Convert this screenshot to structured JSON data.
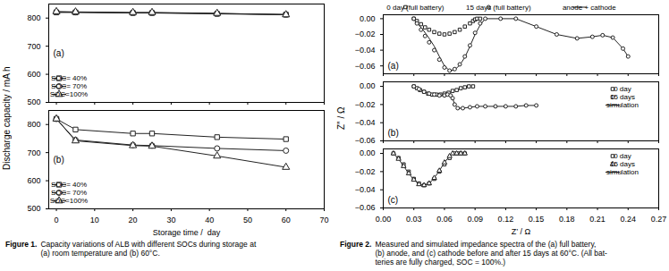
{
  "chart_data": [
    {
      "type": "line",
      "ylabel": "Discharge capacity / mA h",
      "annotations": [
        "(a)"
      ],
      "legend": "lower left",
      "grid": false,
      "tick_labels": "y",
      "xlim": [
        -2,
        70
      ],
      "xticks": [
        0,
        10,
        20,
        30,
        40,
        50,
        60,
        70
      ],
      "ylim": [
        500,
        850
      ],
      "yticks": [
        500,
        600,
        700,
        800
      ],
      "series": [
        {
          "name": "SOC= 40%",
          "marker": "square",
          "color": "#222222",
          "x": [
            0,
            5,
            20,
            25,
            42,
            60
          ],
          "values": [
            820,
            820,
            818,
            818,
            815,
            812
          ]
        },
        {
          "name": "SOC= 70%",
          "marker": "circle",
          "color": "#222222",
          "x": [
            0,
            5,
            20,
            25,
            42,
            60
          ],
          "values": [
            822,
            821,
            819,
            819,
            816,
            813
          ]
        },
        {
          "name": "SOC=100%",
          "marker": "triangle",
          "color": "#222222",
          "x": [
            0,
            5,
            20,
            25,
            42,
            60
          ],
          "values": [
            823,
            822,
            820,
            820,
            817,
            812
          ]
        }
      ]
    },
    {
      "type": "line",
      "xlabel": "Storage time /  day",
      "annotations": [
        "(b)"
      ],
      "legend": "lower left",
      "grid": false,
      "xlim": [
        -2,
        70
      ],
      "xticks": [
        0,
        10,
        20,
        30,
        40,
        50,
        60,
        70
      ],
      "ylim": [
        500,
        850
      ],
      "yticks": [
        500,
        600,
        700,
        800
      ],
      "series": [
        {
          "name": "SOC= 40%",
          "marker": "square",
          "color": "#222222",
          "x": [
            0,
            5,
            20,
            25,
            42,
            60
          ],
          "values": [
            820,
            782,
            768,
            768,
            755,
            748
          ]
        },
        {
          "name": "SOC= 70%",
          "marker": "circle",
          "color": "#222222",
          "x": [
            0,
            5,
            20,
            25,
            42,
            60
          ],
          "values": [
            820,
            745,
            727,
            725,
            715,
            707
          ]
        },
        {
          "name": "SOC=100%",
          "marker": "triangle",
          "color": "#222222",
          "x": [
            0,
            5,
            20,
            25,
            42,
            60
          ],
          "values": [
            820,
            742,
            725,
            723,
            688,
            648
          ]
        }
      ],
      "caption": [
        "Figure 1.",
        "Capacity variations of ALB with different SOCs during storage at\n(a) room temperature and (b) 60°C."
      ]
    },
    {
      "type": "scatter",
      "ylabel": "Z″ / Ω",
      "annotations": [
        "(a)"
      ],
      "legend": "upper center",
      "grid": false,
      "tick_labels": "y",
      "xlim": [
        0,
        0.27
      ],
      "xticks": [
        0,
        0.03,
        0.06,
        0.09,
        0.12,
        0.15,
        0.18,
        0.21,
        0.24,
        0.27
      ],
      "ylim": [
        -0.07,
        0.005
      ],
      "yticks": [
        -0.06,
        -0.04,
        -0.02,
        {
          "value": 0,
          "label": "0.00"
        }
      ],
      "series": [
        {
          "name": "0 day (full battery)",
          "type": "scatter",
          "marker": "square",
          "color": "#222222",
          "x": [
            0.03,
            0.033,
            0.037,
            0.041,
            0.045,
            0.05,
            0.055,
            0.06,
            0.065,
            0.07,
            0.075,
            0.08,
            0.085,
            0.088,
            0.09,
            0.092,
            0.095
          ],
          "values": [
            0.0,
            -0.003,
            -0.007,
            -0.011,
            -0.014,
            -0.017,
            -0.019,
            -0.02,
            -0.019,
            -0.017,
            -0.014,
            -0.01,
            -0.006,
            -0.003,
            -0.001,
            0.0,
            0.0
          ]
        },
        {
          "name": "15 days (full battery)",
          "type": "scatter",
          "marker": "circle",
          "color": "#222222",
          "x": [
            0.03,
            0.033,
            0.037,
            0.041,
            0.045,
            0.05,
            0.055,
            0.06,
            0.065,
            0.07,
            0.075,
            0.08,
            0.085,
            0.09,
            0.095,
            0.1,
            0.115,
            0.13,
            0.15,
            0.17,
            0.19,
            0.205,
            0.215,
            0.225,
            0.235,
            0.24
          ],
          "values": [
            0.0,
            -0.006,
            -0.014,
            -0.022,
            -0.03,
            -0.04,
            -0.052,
            -0.062,
            -0.066,
            -0.064,
            -0.058,
            -0.048,
            -0.034,
            -0.018,
            -0.006,
            0.0,
            0.0,
            0.0,
            -0.01,
            -0.02,
            -0.025,
            -0.023,
            -0.021,
            -0.024,
            -0.038,
            -0.048
          ]
        },
        {
          "name": "anode + cathode",
          "type": "line",
          "color": "#222222",
          "x": [
            0.03,
            0.035,
            0.04,
            0.045,
            0.05,
            0.055,
            0.06,
            0.065,
            0.07,
            0.075,
            0.08,
            0.085,
            0.09,
            0.095,
            0.1,
            0.11,
            0.13,
            0.15,
            0.17,
            0.19,
            0.205,
            0.215,
            0.225,
            0.235,
            0.24
          ],
          "values": [
            0.0,
            -0.008,
            -0.016,
            -0.025,
            -0.035,
            -0.048,
            -0.06,
            -0.066,
            -0.065,
            -0.059,
            -0.049,
            -0.035,
            -0.02,
            -0.008,
            0.0,
            0.0,
            0.0,
            -0.01,
            -0.02,
            -0.025,
            -0.023,
            -0.021,
            -0.024,
            -0.038,
            -0.048
          ]
        }
      ]
    },
    {
      "type": "scatter",
      "annotations": [
        "(b)"
      ],
      "legend": "upper right",
      "grid": false,
      "tick_labels": "y",
      "xlim": [
        0,
        0.27
      ],
      "xticks": [
        0,
        0.03,
        0.06,
        0.09,
        0.12,
        0.15,
        0.18,
        0.21,
        0.24,
        0.27
      ],
      "ylim": [
        -0.06,
        0.005
      ],
      "yticks": [
        -0.06,
        -0.04,
        -0.02,
        {
          "value": 0,
          "label": "0.00"
        }
      ],
      "series": [
        {
          "name": "0 day",
          "type": "scatter",
          "marker": "square",
          "color": "#222222",
          "x": [
            0.03,
            0.033,
            0.036,
            0.04,
            0.044,
            0.048,
            0.052,
            0.056,
            0.06,
            0.064,
            0.068,
            0.072,
            0.076,
            0.08,
            0.084,
            0.088
          ],
          "values": [
            0.0,
            -0.002,
            -0.004,
            -0.006,
            -0.008,
            -0.009,
            -0.009,
            -0.009,
            -0.008,
            -0.007,
            -0.005,
            -0.004,
            -0.002,
            -0.001,
            0.0,
            0.0
          ]
        },
        {
          "name": "15 days",
          "type": "scatter",
          "marker": "circle",
          "color": "#222222",
          "x": [
            0.03,
            0.035,
            0.04,
            0.045,
            0.05,
            0.055,
            0.06,
            0.063,
            0.066,
            0.068,
            0.07,
            0.073,
            0.078,
            0.085,
            0.092,
            0.1,
            0.11,
            0.12,
            0.13,
            0.14,
            0.15
          ],
          "values": [
            0.0,
            -0.003,
            -0.006,
            -0.008,
            -0.009,
            -0.01,
            -0.01,
            -0.009,
            -0.01,
            -0.013,
            -0.02,
            -0.024,
            -0.024,
            -0.023,
            -0.022,
            -0.022,
            -0.022,
            -0.022,
            -0.022,
            -0.021,
            -0.021
          ]
        },
        {
          "name": "simulation",
          "type": "line",
          "color": "#222222",
          "x": [
            0.03,
            0.035,
            0.04,
            0.045,
            0.05,
            0.055,
            0.06,
            0.063,
            0.066,
            0.068,
            0.07,
            0.073,
            0.078,
            0.085,
            0.092,
            0.1,
            0.11,
            0.12,
            0.13,
            0.14,
            0.15
          ],
          "values": [
            0.0,
            -0.003,
            -0.006,
            -0.008,
            -0.009,
            -0.01,
            -0.01,
            -0.009,
            -0.01,
            -0.013,
            -0.02,
            -0.024,
            -0.024,
            -0.023,
            -0.022,
            -0.022,
            -0.022,
            -0.022,
            -0.022,
            -0.021,
            -0.021
          ]
        }
      ]
    },
    {
      "type": "scatter",
      "xlabel": "Z’ / Ω",
      "annotations": [
        "(c)"
      ],
      "legend": "upper right",
      "grid": false,
      "xlim": [
        0,
        0.27
      ],
      "xticks": [
        {
          "value": 0,
          "label": "0.00"
        },
        0.03,
        0.06,
        0.09,
        0.12,
        0.15,
        0.18,
        0.21,
        0.24,
        0.27
      ],
      "ylim": [
        -0.06,
        0.005
      ],
      "yticks": [
        -0.06,
        -0.04,
        -0.02,
        {
          "value": 0,
          "label": "0.00"
        }
      ],
      "series": [
        {
          "name": "0 day",
          "type": "scatter",
          "marker": "square",
          "color": "#222222",
          "x": [
            0.01,
            0.015,
            0.02,
            0.025,
            0.03,
            0.035,
            0.04,
            0.045,
            0.05,
            0.055,
            0.06,
            0.065,
            0.07,
            0.073,
            0.076,
            0.08
          ],
          "values": [
            0.0,
            -0.005,
            -0.012,
            -0.02,
            -0.028,
            -0.033,
            -0.035,
            -0.033,
            -0.028,
            -0.02,
            -0.012,
            -0.005,
            0.0,
            0.0,
            0.0,
            0.0
          ]
        },
        {
          "name": "15 days",
          "type": "scatter",
          "marker": "triangle",
          "color": "#222222",
          "x": [
            0.01,
            0.015,
            0.02,
            0.025,
            0.03,
            0.035,
            0.04,
            0.045,
            0.05,
            0.055,
            0.06,
            0.065,
            0.068,
            0.072,
            0.076,
            0.08
          ],
          "values": [
            0.0,
            -0.006,
            -0.014,
            -0.022,
            -0.029,
            -0.034,
            -0.035,
            -0.033,
            -0.027,
            -0.019,
            -0.01,
            -0.003,
            0.0,
            0.0,
            0.0,
            0.0
          ]
        },
        {
          "name": "simulation",
          "type": "line",
          "color": "#222222",
          "x": [
            0.01,
            0.015,
            0.02,
            0.025,
            0.03,
            0.035,
            0.04,
            0.045,
            0.05,
            0.055,
            0.06,
            0.065,
            0.068,
            0.072,
            0.076,
            0.08
          ],
          "values": [
            0.0,
            -0.006,
            -0.014,
            -0.022,
            -0.029,
            -0.034,
            -0.035,
            -0.033,
            -0.027,
            -0.019,
            -0.01,
            -0.003,
            0.0,
            0.0,
            0.0,
            0.0
          ]
        }
      ],
      "caption": [
        "Figure 2.",
        "Measured and simulated impedance spectra of the (a) full battery,\n(b) anode, and (c) cathode before and after 15 days at 60°C. (All bat-\nteries are fully charged, SOC = 100%.)"
      ]
    }
  ]
}
